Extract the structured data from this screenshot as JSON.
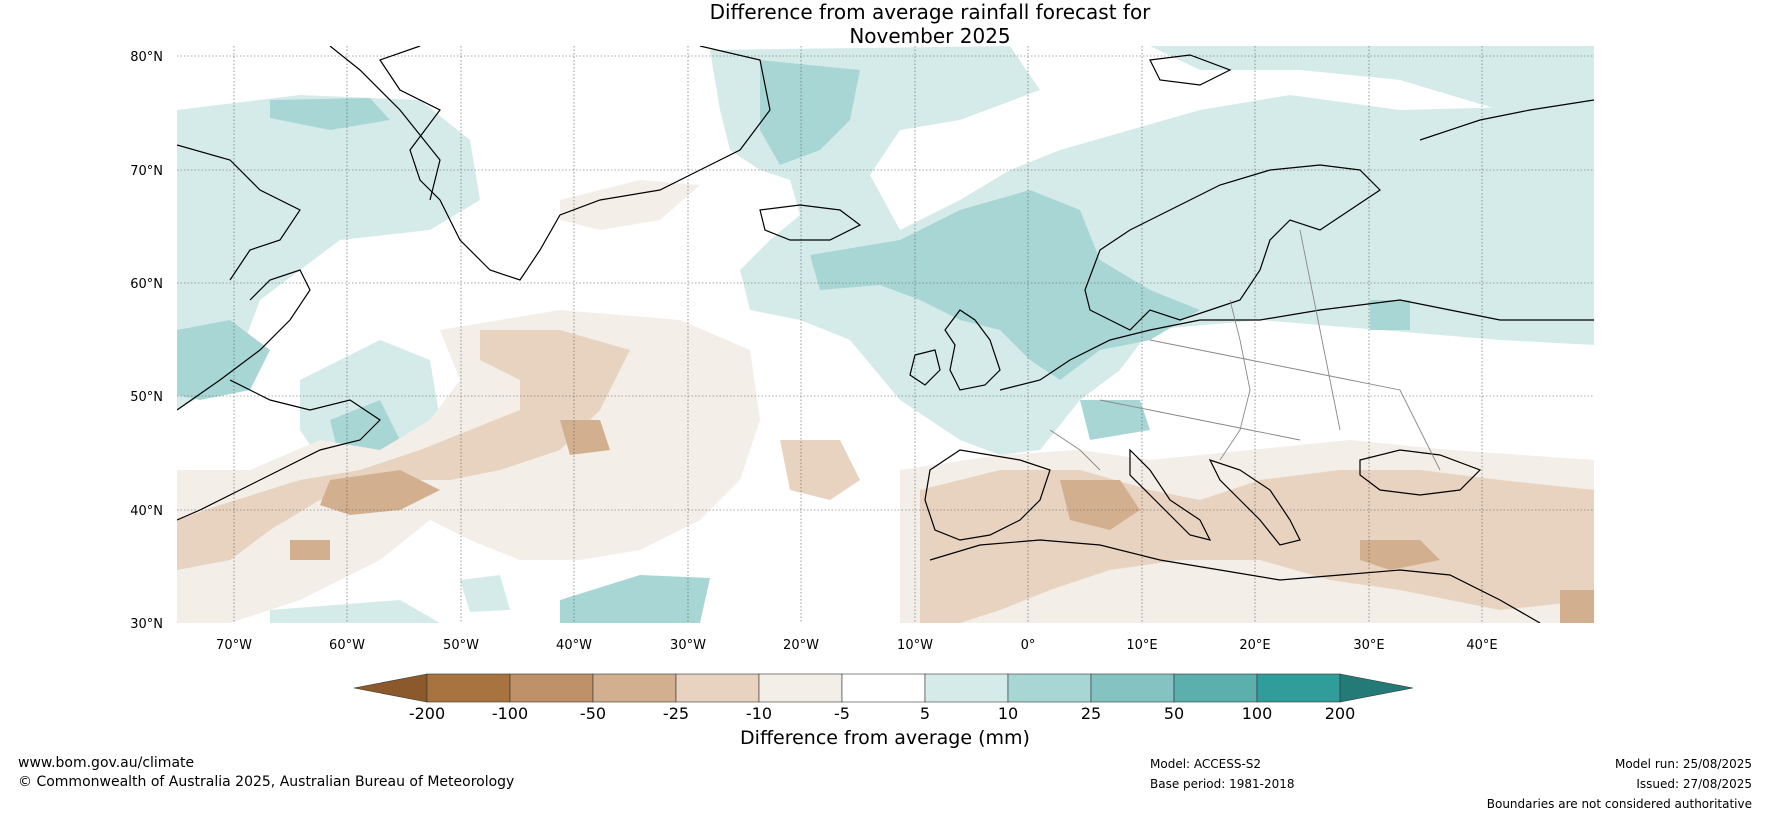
{
  "title_line1": "Difference from average rainfall forecast for",
  "title_line2": "November 2025",
  "map": {
    "lat_ticks": [
      "80°N",
      "70°N",
      "60°N",
      "50°N",
      "40°N",
      "30°N"
    ],
    "lon_ticks": [
      "70°W",
      "60°W",
      "50°W",
      "40°W",
      "30°W",
      "20°W",
      "10°W",
      "0°",
      "10°E",
      "20°E",
      "30°E",
      "40°E"
    ],
    "lat_range": [
      30,
      81
    ],
    "lon_range": [
      -75,
      50
    ]
  },
  "colorbar": {
    "ticks": [
      "-200",
      "-100",
      "-50",
      "-25",
      "-10",
      "-5",
      "5",
      "10",
      "25",
      "50",
      "100",
      "200"
    ],
    "colors": [
      "#8c5a2a",
      "#a8733f",
      "#bf9168",
      "#d2b08f",
      "#e7d3c0",
      "#f3eee7",
      "#ffffff",
      "#d5ebea",
      "#a8d6d5",
      "#84c3c2",
      "#5bb0ae",
      "#319d9a",
      "#247a77"
    ],
    "label": "Difference from average (mm)"
  },
  "footer": {
    "url": "www.bom.gov.au/climate",
    "copyright": "© Commonwealth of Australia 2025, Australian Bureau of Meteorology",
    "model": "Model: ACCESS-S2",
    "base_period": "Base period: 1981-2018",
    "model_run": "Model run: 25/08/2025",
    "issued": "Issued: 27/08/2025",
    "disclaimer": "Boundaries are not considered authoritative"
  }
}
